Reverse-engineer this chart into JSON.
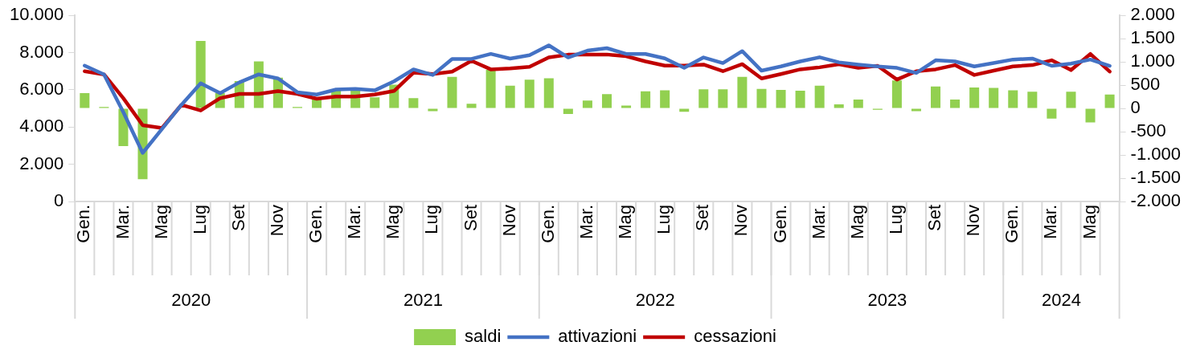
{
  "chart_data": {
    "type": "bar",
    "categories": [
      "Gen.",
      null,
      "Mar.",
      null,
      "Mag",
      null,
      "Lug",
      null,
      "Set",
      null,
      "Nov",
      null,
      "Gen.",
      null,
      "Mar.",
      null,
      "Mag",
      null,
      "Lug",
      null,
      "Set",
      null,
      "Nov",
      null,
      "Gen.",
      null,
      "Mar.",
      null,
      "Mag",
      null,
      "Lug",
      null,
      "Set",
      null,
      "Nov",
      null,
      "Gen.",
      null,
      "Mar.",
      null,
      "Mag",
      null,
      "Lug",
      null,
      "Set",
      null,
      "Nov",
      null,
      "Gen.",
      null,
      "Mar.",
      null,
      "Mag",
      null
    ],
    "annotations": [
      "2020",
      "2021",
      "2022",
      "2023",
      "2024"
    ],
    "series": [
      {
        "name": "saldi",
        "axis": "y2",
        "color": "#92d050",
        "values": [
          330,
          30,
          -810,
          -1520,
          null,
          null,
          1450,
          330,
          590,
          1010,
          660,
          30,
          240,
          390,
          390,
          240,
          510,
          220,
          -60,
          680,
          100,
          830,
          490,
          620,
          650,
          -120,
          170,
          310,
          60,
          370,
          390,
          -70,
          410,
          410,
          680,
          420,
          400,
          380,
          490,
          90,
          190,
          -30,
          600,
          -60,
          470,
          190,
          450,
          440,
          390,
          360,
          -220,
          360,
          -300,
          300
        ]
      },
      {
        "name": "attivazioni",
        "type": "line",
        "color": "#4472c4",
        "values": [
          7300,
          6830,
          4800,
          2610,
          3900,
          5190,
          6350,
          5820,
          6400,
          6830,
          6610,
          5870,
          5750,
          6020,
          6050,
          5970,
          6460,
          7100,
          6800,
          7660,
          7660,
          7930,
          7680,
          7860,
          8390,
          7740,
          8110,
          8240,
          7930,
          7930,
          7690,
          7180,
          7740,
          7440,
          8080,
          7030,
          7260,
          7530,
          7750,
          7480,
          7360,
          7260,
          7180,
          6910,
          7590,
          7530,
          7260,
          7440,
          7630,
          7680,
          7290,
          7410,
          7630,
          7290
        ]
      },
      {
        "name": "cessazioni",
        "type": "line",
        "color": "#c00000",
        "values": [
          7000,
          6830,
          5550,
          4100,
          3950,
          5190,
          4890,
          5550,
          5780,
          5780,
          5930,
          5780,
          5520,
          5640,
          5640,
          5750,
          5940,
          6920,
          6850,
          6980,
          7560,
          7100,
          7150,
          7240,
          7740,
          7890,
          7900,
          7900,
          7810,
          7530,
          7300,
          7300,
          7360,
          7000,
          7380,
          6610,
          6850,
          7100,
          7210,
          7380,
          7180,
          7290,
          6550,
          7000,
          7100,
          7330,
          6800,
          7030,
          7260,
          7330,
          7590,
          7060,
          7930,
          6980
        ]
      }
    ],
    "ylim": [
      0,
      10000
    ],
    "yticks": [
      0,
      {
        "value": 2000,
        "label": "2.000"
      },
      {
        "value": 4000,
        "label": "4.000"
      },
      {
        "value": 6000,
        "label": "6.000"
      },
      {
        "value": 8000,
        "label": "8.000"
      },
      {
        "value": 10000,
        "label": "10.000"
      }
    ],
    "y2lim": [
      -2000,
      2000
    ],
    "y2ticks": [
      {
        "value": -2000,
        "label": "-2.000"
      },
      {
        "value": -1500,
        "label": "-1.500"
      },
      {
        "value": -1000,
        "label": "-1.000"
      },
      -500,
      0,
      500,
      {
        "value": 1000,
        "label": "1.000"
      },
      {
        "value": 1500,
        "label": "1.500"
      },
      {
        "value": 2000,
        "label": "2.000"
      }
    ],
    "legend": "bottom"
  }
}
